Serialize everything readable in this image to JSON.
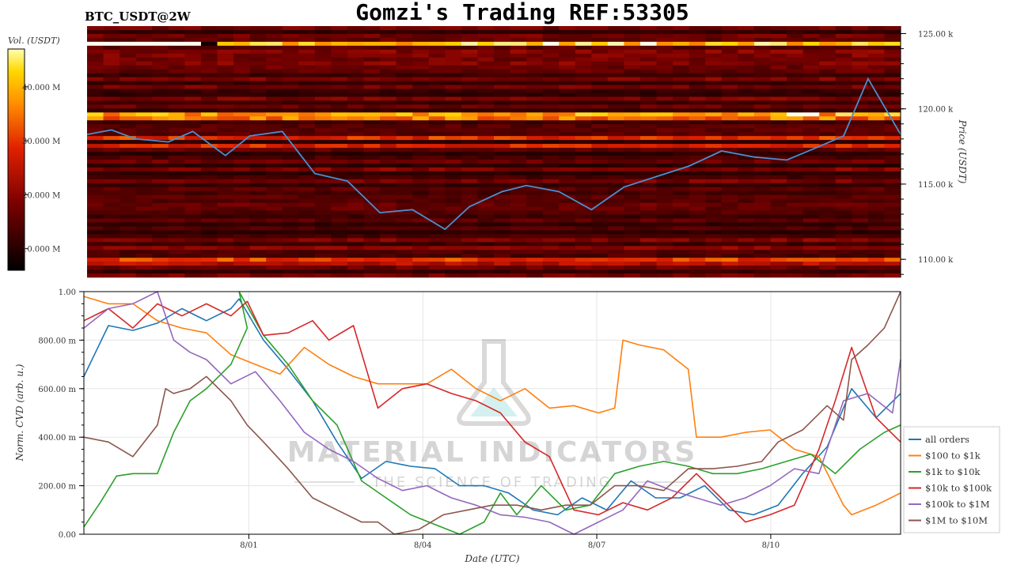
{
  "header": {
    "symbol": "BTC_USDT@2W",
    "title": "Gomzi's Trading REF:53305"
  },
  "watermark": {
    "line1": "MATERIAL INDICATORS",
    "line2": "THE SCIENCE OF TRADING"
  },
  "colors": {
    "all_orders": "#1f77b4",
    "usd100_1k": "#ff7f0e",
    "usd1k_10k": "#2ca02c",
    "usd10k_100k": "#d62728",
    "usd100k_1m": "#9467bd",
    "usd1m_10m": "#8c564b",
    "heatmap_low": "#000000",
    "heatmap_high": "#ffffff",
    "price_line": "#4a8fd0"
  },
  "chart_data": [
    {
      "type": "heatmap",
      "name": "orderbook-heatmap",
      "colorbar_label": "Vol. (USDT)",
      "colorbar_ticks": [
        "10.000 M",
        "20.000 M",
        "30.000 M",
        "40.000 M"
      ],
      "colorbar_values": [
        10,
        20,
        30,
        40
      ],
      "colorbar_range": [
        6,
        47
      ],
      "ylabel": "Price (USDT)",
      "ylim": [
        108800,
        125500
      ],
      "yticks": [
        110000,
        115000,
        120000,
        125000
      ],
      "ytick_labels": [
        "110.00 k",
        "115.00 k",
        "120.00 k",
        "125.00 k"
      ],
      "price_series": {
        "x": [
          0,
          3,
          6,
          10,
          13,
          17,
          20,
          24,
          28,
          32,
          36,
          40,
          44,
          47,
          51,
          54,
          58,
          62,
          66,
          70,
          74,
          78,
          82,
          86,
          90,
          93,
          96,
          100
        ],
        "y": [
          118300,
          118600,
          118000,
          117800,
          118500,
          116900,
          118200,
          118500,
          115700,
          115200,
          113100,
          113300,
          112000,
          113500,
          114500,
          114900,
          114500,
          113300,
          114800,
          115500,
          116200,
          117200,
          116800,
          116600,
          117500,
          118200,
          122000,
          118300
        ]
      }
    },
    {
      "type": "line",
      "name": "normalized-cvd",
      "xlabel": "Date (UTC)",
      "ylabel": "Norm. CVD (arb. u.)",
      "ylim": [
        0,
        1
      ],
      "yticks": [
        0,
        0.2,
        0.4,
        0.6,
        0.8,
        1.0
      ],
      "ytick_labels": [
        "0.00",
        "200.00 m",
        "400.00 m",
        "600.00 m",
        "800.00 m",
        "1.00"
      ],
      "xlim": [
        0,
        100
      ],
      "xticks": [
        20.2,
        41.5,
        62.8,
        84.1
      ],
      "xtick_labels": [
        "8/01",
        "8/04",
        "8/07",
        "8/10"
      ],
      "legend_position": "lower-right",
      "series": [
        {
          "name": "all orders",
          "color_key": "all_orders",
          "x": [
            0,
            3,
            6,
            9,
            12,
            15,
            18,
            19,
            22,
            25,
            28,
            31,
            34,
            37,
            40,
            43,
            46,
            49,
            52,
            55,
            58,
            61,
            64,
            67,
            70,
            73,
            76,
            79,
            82,
            85,
            88,
            91,
            94,
            97,
            100
          ],
          "y": [
            0.65,
            0.86,
            0.84,
            0.87,
            0.93,
            0.88,
            0.93,
            0.97,
            0.8,
            0.68,
            0.55,
            0.38,
            0.23,
            0.3,
            0.28,
            0.27,
            0.2,
            0.2,
            0.17,
            0.1,
            0.08,
            0.15,
            0.1,
            0.22,
            0.15,
            0.15,
            0.2,
            0.1,
            0.08,
            0.12,
            0.25,
            0.36,
            0.6,
            0.48,
            0.58
          ]
        },
        {
          "name": "$100 to $1k",
          "color_key": "usd100_1k",
          "x": [
            0,
            3,
            6,
            9,
            12,
            15,
            18,
            21,
            24,
            27,
            30,
            33,
            36,
            39,
            42,
            45,
            48,
            51,
            54,
            57,
            60,
            63,
            65,
            66,
            68,
            71,
            74,
            75,
            78,
            81,
            84,
            87,
            90,
            93,
            94,
            97,
            100
          ],
          "y": [
            0.98,
            0.95,
            0.95,
            0.88,
            0.85,
            0.83,
            0.74,
            0.7,
            0.66,
            0.77,
            0.7,
            0.65,
            0.62,
            0.62,
            0.62,
            0.68,
            0.6,
            0.55,
            0.6,
            0.52,
            0.53,
            0.5,
            0.52,
            0.8,
            0.78,
            0.76,
            0.68,
            0.4,
            0.4,
            0.42,
            0.43,
            0.35,
            0.32,
            0.12,
            0.08,
            0.12,
            0.17
          ]
        },
        {
          "name": "$1k to $10k",
          "color_key": "usd1k_10k",
          "x": [
            0,
            2,
            4,
            6,
            9,
            11,
            13,
            15,
            18,
            20,
            19,
            22,
            25,
            28,
            31,
            34,
            37,
            40,
            43,
            46,
            49,
            51,
            53,
            56,
            59,
            62,
            65,
            68,
            71,
            74,
            77,
            80,
            83,
            86,
            89,
            92,
            95,
            98,
            100
          ],
          "y": [
            0.03,
            0.13,
            0.24,
            0.25,
            0.25,
            0.42,
            0.55,
            0.6,
            0.7,
            0.85,
            1.0,
            0.82,
            0.7,
            0.55,
            0.45,
            0.22,
            0.15,
            0.08,
            0.04,
            0.0,
            0.05,
            0.17,
            0.08,
            0.2,
            0.1,
            0.12,
            0.25,
            0.28,
            0.3,
            0.28,
            0.25,
            0.25,
            0.27,
            0.3,
            0.33,
            0.25,
            0.35,
            0.42,
            0.45
          ]
        },
        {
          "name": "$10k to $100k",
          "color_key": "usd10k_100k",
          "x": [
            0,
            3,
            6,
            9,
            12,
            15,
            18,
            20,
            22,
            25,
            28,
            30,
            33,
            36,
            39,
            42,
            45,
            48,
            51,
            54,
            57,
            60,
            63,
            66,
            69,
            72,
            75,
            78,
            81,
            84,
            87,
            90,
            92,
            94,
            97,
            100
          ],
          "y": [
            0.88,
            0.93,
            0.85,
            0.95,
            0.9,
            0.95,
            0.9,
            0.96,
            0.82,
            0.83,
            0.88,
            0.8,
            0.86,
            0.52,
            0.6,
            0.62,
            0.58,
            0.55,
            0.5,
            0.38,
            0.32,
            0.1,
            0.08,
            0.13,
            0.1,
            0.15,
            0.25,
            0.15,
            0.05,
            0.08,
            0.12,
            0.35,
            0.55,
            0.77,
            0.48,
            0.38
          ]
        },
        {
          "name": "$100k to $1M",
          "color_key": "usd100k_1m",
          "x": [
            0,
            3,
            6,
            9,
            11,
            13,
            15,
            18,
            21,
            24,
            27,
            30,
            33,
            36,
            39,
            42,
            45,
            48,
            51,
            54,
            57,
            60,
            63,
            66,
            69,
            72,
            75,
            78,
            81,
            84,
            87,
            90,
            93,
            96,
            99,
            100
          ],
          "y": [
            0.85,
            0.93,
            0.95,
            1.0,
            0.8,
            0.75,
            0.72,
            0.62,
            0.67,
            0.55,
            0.42,
            0.35,
            0.3,
            0.23,
            0.18,
            0.2,
            0.15,
            0.12,
            0.08,
            0.07,
            0.05,
            0.0,
            0.05,
            0.1,
            0.22,
            0.18,
            0.15,
            0.12,
            0.15,
            0.2,
            0.27,
            0.25,
            0.55,
            0.58,
            0.5,
            0.72
          ]
        },
        {
          "name": "$1M to $10M",
          "color_key": "usd1m_10m",
          "x": [
            0,
            3,
            6,
            9,
            10,
            11,
            13,
            15,
            18,
            20,
            22,
            25,
            28,
            31,
            34,
            36,
            38,
            41,
            44,
            47,
            50,
            53,
            56,
            59,
            62,
            65,
            68,
            71,
            74,
            77,
            80,
            83,
            85,
            88,
            91,
            93,
            94,
            96,
            98,
            100
          ],
          "y": [
            0.4,
            0.38,
            0.32,
            0.45,
            0.6,
            0.58,
            0.6,
            0.65,
            0.55,
            0.45,
            0.38,
            0.27,
            0.15,
            0.1,
            0.05,
            0.05,
            0.0,
            0.02,
            0.08,
            0.1,
            0.12,
            0.12,
            0.1,
            0.12,
            0.12,
            0.2,
            0.2,
            0.18,
            0.27,
            0.27,
            0.28,
            0.3,
            0.38,
            0.43,
            0.53,
            0.47,
            0.72,
            0.78,
            0.85,
            1.0
          ]
        }
      ]
    }
  ]
}
